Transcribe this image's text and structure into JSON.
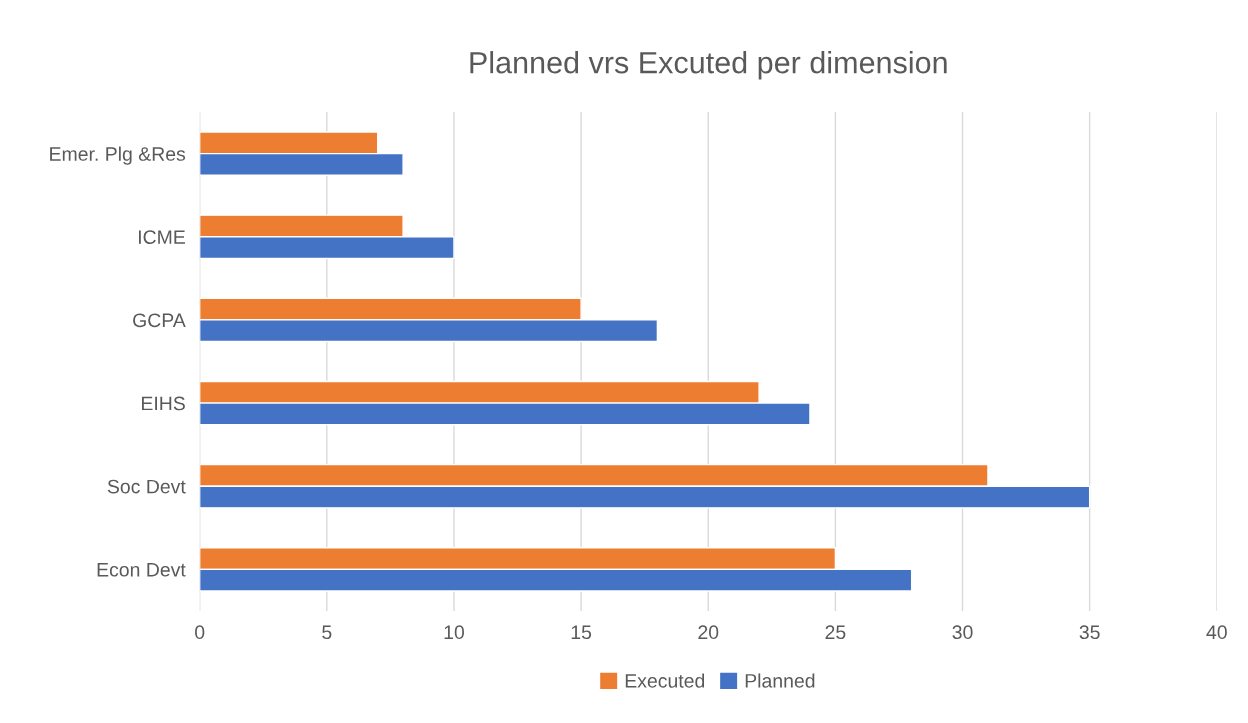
{
  "chart_data": {
    "type": "bar",
    "orientation": "horizontal",
    "title": "Planned vrs Excuted per dimension",
    "categories": [
      "Emer. Plg &Res",
      "ICME",
      "GCPA",
      "EIHS",
      "Soc Devt",
      "Econ Devt"
    ],
    "series": [
      {
        "name": "Executed",
        "color": "#ed7d31",
        "values": [
          7,
          8,
          15,
          22,
          31,
          25
        ]
      },
      {
        "name": "Planned",
        "color": "#4472c4",
        "values": [
          8,
          10,
          18,
          24,
          35,
          28
        ]
      }
    ],
    "xlim": [
      0,
      40
    ],
    "xticks": [
      0,
      5,
      10,
      15,
      20,
      25,
      30,
      35,
      40
    ],
    "grid": "x",
    "legend": "bottom"
  }
}
